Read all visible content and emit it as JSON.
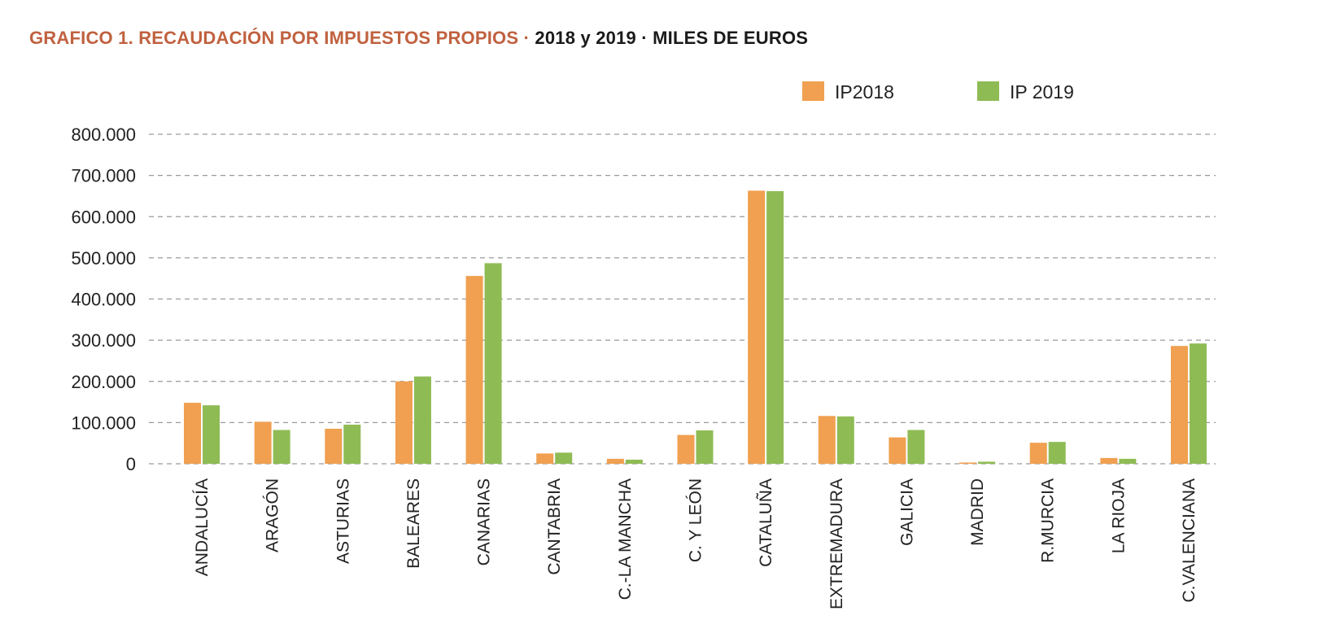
{
  "title": {
    "part1": "GRAFICO 1. RECAUDACIÓN POR IMPUESTOS PROPIOS · ",
    "part2": "2018 y 2019 · MILES DE EUROS"
  },
  "colors": {
    "s2018": "#f0a050",
    "s2019": "#8fbb55",
    "grid": "#9a9a9a"
  },
  "chart_data": {
    "type": "bar",
    "title": "GRAFICO 1. RECAUDACIÓN POR IMPUESTOS PROPIOS · 2018 y 2019 · MILES DE EUROS",
    "xlabel": "",
    "ylabel": "",
    "ylim": [
      0,
      800000
    ],
    "yticks": [
      0,
      100000,
      200000,
      300000,
      400000,
      500000,
      600000,
      700000,
      800000
    ],
    "ytick_labels": [
      "0",
      "100.000",
      "200.000",
      "300.000",
      "400.000",
      "500.000",
      "600.000",
      "700.000",
      "800.000"
    ],
    "grid": true,
    "legend_position": "top-right",
    "categories": [
      "ANDALUCÍA",
      "ARAGÓN",
      "ASTURIAS",
      "BALEARES",
      "CANARIAS",
      "CANTABRIA",
      "C.-LA MANCHA",
      "C. Y LEÓN",
      "CATALUÑA",
      "EXTREMADURA",
      "GALICIA",
      "MADRID",
      "R.MURCIA",
      "LA RIOJA",
      "C.VALENCIANA"
    ],
    "series": [
      {
        "name": "IP2018",
        "values": [
          148000,
          102000,
          85000,
          200000,
          456000,
          25000,
          12000,
          70000,
          663000,
          116000,
          64000,
          3000,
          51000,
          14000,
          286000
        ]
      },
      {
        "name": "IP 2019",
        "values": [
          142000,
          82000,
          95000,
          212000,
          487000,
          27000,
          10000,
          81000,
          662000,
          115000,
          82000,
          5000,
          53000,
          12000,
          292000
        ]
      }
    ]
  }
}
